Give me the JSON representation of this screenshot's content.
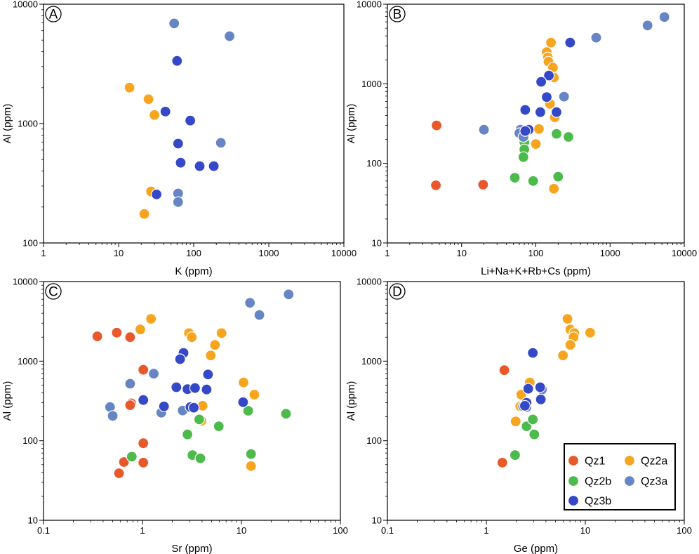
{
  "colors": {
    "Qz1": "#e8582a",
    "Qz2a": "#f7a51f",
    "Qz2b": "#4cbb4c",
    "Qz3a": "#6785c4",
    "Qz3b": "#3448c8",
    "marker_edge": "#ffffff",
    "axis": "#000000"
  },
  "legend": {
    "items": [
      {
        "key": "Qz1",
        "label": "Qz1"
      },
      {
        "key": "Qz2a",
        "label": "Qz2a"
      },
      {
        "key": "Qz2b",
        "label": "Qz2b"
      },
      {
        "key": "Qz3a",
        "label": "Qz3a"
      },
      {
        "key": "Qz3b",
        "label": "Qz3b"
      }
    ]
  },
  "chart_data": [
    {
      "panel": "A",
      "type": "scatter",
      "xlabel": "K (ppm)",
      "ylabel": "Al (ppm)",
      "xscale": "log",
      "yscale": "log",
      "xlim": [
        1,
        10000
      ],
      "ylim": [
        100,
        10000
      ],
      "xticks": [
        "1",
        "10",
        "100",
        "1000",
        "10000"
      ],
      "yticks": [
        "100",
        "1000",
        "10000"
      ],
      "series": [
        {
          "name": "Qz2a",
          "points": [
            [
              14,
              2000
            ],
            [
              25,
              1600
            ],
            [
              30,
              1180
            ],
            [
              27,
              270
            ],
            [
              22,
              175
            ]
          ]
        },
        {
          "name": "Qz3a",
          "points": [
            [
              55,
              6900
            ],
            [
              300,
              5400
            ],
            [
              230,
              690
            ],
            [
              62,
              260
            ],
            [
              62,
              220
            ]
          ]
        },
        {
          "name": "Qz3b",
          "points": [
            [
              60,
              3350
            ],
            [
              42,
              1260
            ],
            [
              90,
              1060
            ],
            [
              62,
              680
            ],
            [
              67,
              470
            ],
            [
              120,
              440
            ],
            [
              185,
              440
            ],
            [
              32,
              255
            ]
          ]
        }
      ]
    },
    {
      "panel": "B",
      "type": "scatter",
      "xlabel": "Li+Na+K+Rb+Cs (ppm)",
      "ylabel": "Al (ppm)",
      "xscale": "log",
      "yscale": "log",
      "xlim": [
        1,
        10000
      ],
      "ylim": [
        10,
        10000
      ],
      "xticks": [
        "1",
        "10",
        "100",
        "1000",
        "10000"
      ],
      "yticks": [
        "10",
        "100",
        "1000",
        "10000"
      ],
      "series": [
        {
          "name": "Qz1",
          "points": [
            [
              4.6,
              300
            ],
            [
              4.5,
              53
            ],
            [
              19.5,
              54
            ]
          ]
        },
        {
          "name": "Qz2a",
          "points": [
            [
              160,
              3300
            ],
            [
              140,
              2500
            ],
            [
              145,
              2150
            ],
            [
              148,
              1900
            ],
            [
              170,
              1600
            ],
            [
              175,
              1200
            ],
            [
              155,
              560
            ],
            [
              180,
              380
            ],
            [
              110,
              270
            ],
            [
              100,
              175
            ],
            [
              175,
              48
            ]
          ]
        },
        {
          "name": "Qz2b",
          "points": [
            [
              190,
              235
            ],
            [
              275,
              215
            ],
            [
              70,
              210
            ],
            [
              70,
              185
            ],
            [
              70,
              150
            ],
            [
              68,
              120
            ],
            [
              200,
              68
            ],
            [
              52,
              66
            ],
            [
              92,
              60
            ]
          ]
        },
        {
          "name": "Qz3a",
          "points": [
            [
              5400,
              6900
            ],
            [
              3200,
              5400
            ],
            [
              650,
              3800
            ],
            [
              240,
              690
            ],
            [
              20,
              265
            ],
            [
              62,
              265
            ],
            [
              60,
              240
            ],
            [
              68,
              215
            ]
          ]
        },
        {
          "name": "Qz3b",
          "points": [
            [
              290,
              3300
            ],
            [
              150,
              1270
            ],
            [
              118,
              1060
            ],
            [
              140,
              680
            ],
            [
              72,
              470
            ],
            [
              115,
              440
            ],
            [
              190,
              440
            ],
            [
              80,
              265
            ],
            [
              72,
              255
            ]
          ]
        }
      ]
    },
    {
      "panel": "C",
      "type": "scatter",
      "xlabel": "Sr (ppm)",
      "ylabel": "Al (ppm)",
      "xscale": "log",
      "yscale": "log",
      "xlim": [
        0.1,
        100
      ],
      "ylim": [
        10,
        10000
      ],
      "xticks": [
        "0.1",
        "1",
        "10",
        "100"
      ],
      "yticks": [
        "10",
        "100",
        "1000",
        "10000"
      ],
      "series": [
        {
          "name": "Qz1",
          "points": [
            [
              0.35,
              2050
            ],
            [
              0.55,
              2280
            ],
            [
              0.75,
              2000
            ],
            [
              1.02,
              780
            ],
            [
              0.77,
              295
            ],
            [
              0.75,
              280
            ],
            [
              1.02,
              93
            ],
            [
              0.65,
              54
            ],
            [
              1.02,
              53
            ],
            [
              0.58,
              39
            ]
          ]
        },
        {
          "name": "Qz2a",
          "points": [
            [
              1.22,
              3400
            ],
            [
              0.95,
              2500
            ],
            [
              2.95,
              2250
            ],
            [
              3.15,
              2000
            ],
            [
              6.3,
              2250
            ],
            [
              5.4,
              1600
            ],
            [
              4.9,
              1180
            ],
            [
              10.5,
              540
            ],
            [
              13.5,
              380
            ],
            [
              4.05,
              275
            ],
            [
              3.95,
              178
            ],
            [
              12.5,
              48
            ]
          ]
        },
        {
          "name": "Qz2b",
          "points": [
            [
              0.78,
              63
            ],
            [
              2.85,
              120
            ],
            [
              3.75,
              185
            ],
            [
              5.9,
              152
            ],
            [
              11.7,
              238
            ],
            [
              28.2,
              218
            ],
            [
              12.5,
              68
            ],
            [
              3.2,
              66
            ],
            [
              3.85,
              60
            ]
          ]
        },
        {
          "name": "Qz3a",
          "points": [
            [
              30,
              6900
            ],
            [
              12.2,
              5400
            ],
            [
              15.2,
              3800
            ],
            [
              1.3,
              695
            ],
            [
              0.75,
              520
            ],
            [
              0.47,
              265
            ],
            [
              0.5,
              205
            ],
            [
              1.55,
              225
            ],
            [
              2.55,
              240
            ]
          ]
        },
        {
          "name": "Qz3b",
          "points": [
            [
              2.6,
              1270
            ],
            [
              2.4,
              1060
            ],
            [
              4.6,
              680
            ],
            [
              2.2,
              470
            ],
            [
              2.85,
              445
            ],
            [
              4.45,
              440
            ],
            [
              3.4,
              460
            ],
            [
              1.02,
              325
            ],
            [
              1.65,
              270
            ],
            [
              3.05,
              265
            ],
            [
              3.3,
              260
            ],
            [
              10.4,
              305
            ]
          ]
        }
      ]
    },
    {
      "panel": "D",
      "type": "scatter",
      "xlabel": "Ge (ppm)",
      "ylabel": "Al (ppm)",
      "xscale": "log",
      "yscale": "log",
      "xlim": [
        0.1,
        100
      ],
      "ylim": [
        10,
        10000
      ],
      "xticks": [
        "0.1",
        "1",
        "10",
        "100"
      ],
      "yticks": [
        "10",
        "100",
        "1000",
        "10000"
      ],
      "series": [
        {
          "name": "Qz1",
          "points": [
            [
              1.52,
              770
            ],
            [
              1.45,
              53
            ]
          ]
        },
        {
          "name": "Qz2a",
          "points": [
            [
              6.6,
              3400
            ],
            [
              7.05,
              2500
            ],
            [
              7.75,
              2250
            ],
            [
              7.6,
              2000
            ],
            [
              11.2,
              2280
            ],
            [
              7.05,
              1600
            ],
            [
              5.95,
              1180
            ],
            [
              2.75,
              540
            ],
            [
              2.25,
              380
            ],
            [
              2.2,
              270
            ],
            [
              1.98,
              175
            ]
          ]
        },
        {
          "name": "Qz2b",
          "points": [
            [
              2.55,
              152
            ],
            [
              2.95,
              185
            ],
            [
              3.05,
              120
            ],
            [
              1.95,
              66
            ]
          ]
        },
        {
          "name": "Qz3a",
          "points": [
            [
              3.65,
              440
            ],
            [
              2.55,
              265
            ],
            [
              2.35,
              270
            ]
          ]
        },
        {
          "name": "Qz3b",
          "points": [
            [
              2.95,
              1270
            ],
            [
              3.5,
              470
            ],
            [
              2.65,
              450
            ],
            [
              3.55,
              330
            ],
            [
              2.55,
              300
            ],
            [
              2.45,
              275
            ]
          ]
        }
      ]
    }
  ]
}
